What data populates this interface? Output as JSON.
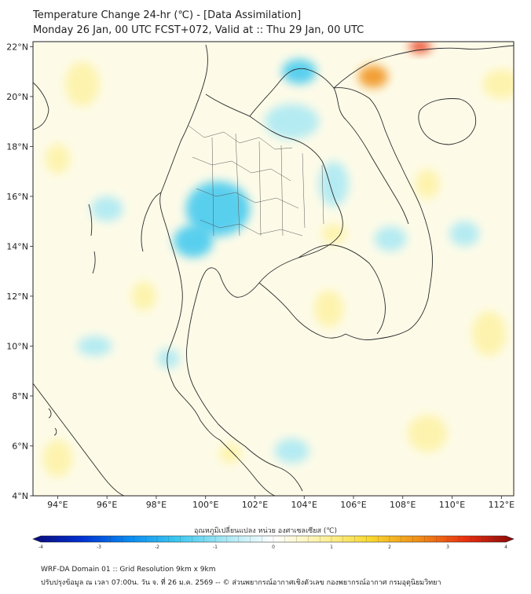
{
  "title": {
    "line1": "Temperature Change 24-hr (℃) - [Data Assimilation]",
    "line2": "Monday 26 Jan, 00 UTC FCST+072, Valid at :: Thu 29 Jan, 00 UTC"
  },
  "map": {
    "lon_range": [
      93,
      112.5
    ],
    "lat_range": [
      4,
      22.2
    ],
    "x_ticks": [
      {
        "value": 94,
        "label": "94°E"
      },
      {
        "value": 96,
        "label": "96°E"
      },
      {
        "value": 98,
        "label": "98°E"
      },
      {
        "value": 100,
        "label": "100°E"
      },
      {
        "value": 102,
        "label": "102°E"
      },
      {
        "value": 104,
        "label": "104°E"
      },
      {
        "value": 106,
        "label": "106°E"
      },
      {
        "value": 108,
        "label": "108°E"
      },
      {
        "value": 110,
        "label": "110°E"
      },
      {
        "value": 112,
        "label": "112°E"
      }
    ],
    "y_ticks": [
      {
        "value": 22,
        "label": "22°N"
      },
      {
        "value": 20,
        "label": "20°N"
      },
      {
        "value": 18,
        "label": "18°N"
      },
      {
        "value": 16,
        "label": "16°N"
      },
      {
        "value": 14,
        "label": "14°N"
      },
      {
        "value": 12,
        "label": "12°N"
      },
      {
        "value": 10,
        "label": "10°N"
      },
      {
        "value": 8,
        "label": "8°N"
      },
      {
        "value": 6,
        "label": "6°N"
      },
      {
        "value": 4,
        "label": "4°N"
      }
    ],
    "anomalies": [
      {
        "lon": 100.5,
        "lat": 15.5,
        "value": -1.6,
        "sx": 2.6,
        "sy": 2.2
      },
      {
        "lon": 99.5,
        "lat": 14.2,
        "value": -1.4,
        "sx": 1.6,
        "sy": 1.3
      },
      {
        "lon": 103.8,
        "lat": 21.0,
        "value": -2.0,
        "sx": 1.4,
        "sy": 1.0
      },
      {
        "lon": 103.5,
        "lat": 19.0,
        "value": -1.1,
        "sx": 2.2,
        "sy": 1.4
      },
      {
        "lon": 105.2,
        "lat": 16.5,
        "value": -1.0,
        "sx": 1.2,
        "sy": 1.8
      },
      {
        "lon": 107.5,
        "lat": 14.3,
        "value": -1.0,
        "sx": 1.3,
        "sy": 1.0
      },
      {
        "lon": 96.0,
        "lat": 15.5,
        "value": -0.6,
        "sx": 1.3,
        "sy": 1.0
      },
      {
        "lon": 95.5,
        "lat": 10.0,
        "value": -0.6,
        "sx": 1.4,
        "sy": 0.8
      },
      {
        "lon": 103.5,
        "lat": 5.8,
        "value": -0.9,
        "sx": 1.4,
        "sy": 1.0
      },
      {
        "lon": 98.5,
        "lat": 9.5,
        "value": -0.6,
        "sx": 0.9,
        "sy": 0.8
      },
      {
        "lon": 110.5,
        "lat": 14.5,
        "value": -0.5,
        "sx": 1.2,
        "sy": 1.0
      },
      {
        "lon": 106.8,
        "lat": 20.8,
        "value": 2.4,
        "sx": 1.2,
        "sy": 0.9
      },
      {
        "lon": 108.7,
        "lat": 22.0,
        "value": 2.8,
        "sx": 0.9,
        "sy": 0.5
      },
      {
        "lon": 105.0,
        "lat": 11.5,
        "value": 1.0,
        "sx": 1.2,
        "sy": 1.5
      },
      {
        "lon": 105.2,
        "lat": 14.5,
        "value": 0.8,
        "sx": 1.0,
        "sy": 0.8
      },
      {
        "lon": 95.0,
        "lat": 20.5,
        "value": 0.9,
        "sx": 1.4,
        "sy": 1.8
      },
      {
        "lon": 94.0,
        "lat": 17.5,
        "value": 0.6,
        "sx": 1.0,
        "sy": 1.2
      },
      {
        "lon": 112.0,
        "lat": 20.5,
        "value": 0.6,
        "sx": 1.5,
        "sy": 1.2
      },
      {
        "lon": 111.5,
        "lat": 10.5,
        "value": 0.7,
        "sx": 1.4,
        "sy": 1.8
      },
      {
        "lon": 101.0,
        "lat": 5.7,
        "value": 1.1,
        "sx": 0.9,
        "sy": 0.8
      },
      {
        "lon": 109.0,
        "lat": 6.5,
        "value": 0.6,
        "sx": 1.6,
        "sy": 1.5
      },
      {
        "lon": 97.5,
        "lat": 12.0,
        "value": 0.5,
        "sx": 1.0,
        "sy": 1.2
      },
      {
        "lon": 109.0,
        "lat": 16.5,
        "value": 0.5,
        "sx": 1.0,
        "sy": 1.2
      },
      {
        "lon": 94.0,
        "lat": 5.5,
        "value": 0.4,
        "sx": 1.2,
        "sy": 1.5
      }
    ]
  },
  "colorbar": {
    "label": "อุณหภูมิเปลี่ยนแปลง หน่วย องศาเซลเซียส (℃)",
    "range": [
      -4,
      4
    ],
    "ticks": [
      {
        "value": -4,
        "label": "-4"
      },
      {
        "value": -3,
        "label": "-3"
      },
      {
        "value": -2,
        "label": "-2"
      },
      {
        "value": -1,
        "label": "-1"
      },
      {
        "value": 0,
        "label": "0"
      },
      {
        "value": 1,
        "label": "1"
      },
      {
        "value": 2,
        "label": "2"
      },
      {
        "value": 3,
        "label": "3"
      },
      {
        "value": 4,
        "label": "4"
      }
    ],
    "colors": [
      "#0a0a7a",
      "#0030d0",
      "#0a8af0",
      "#3cc8f0",
      "#a8e8f4",
      "#ffffff",
      "#fdf2a4",
      "#f8d830",
      "#f09018",
      "#e83010",
      "#8a0808"
    ]
  },
  "footer": {
    "line1": "WRF-DA Domain 01 :: Grid Resolution 9km x 9km",
    "line2": "ปรับปรุงข้อมูล ณ เวลา 07:00น. วัน จ. ที่ 26 ม.ค. 2569 -- © ส่วนพยากรณ์อากาศเชิงตัวเลข กองพยากรณ์อากาศ กรมอุตุนิยมวิทยา"
  }
}
